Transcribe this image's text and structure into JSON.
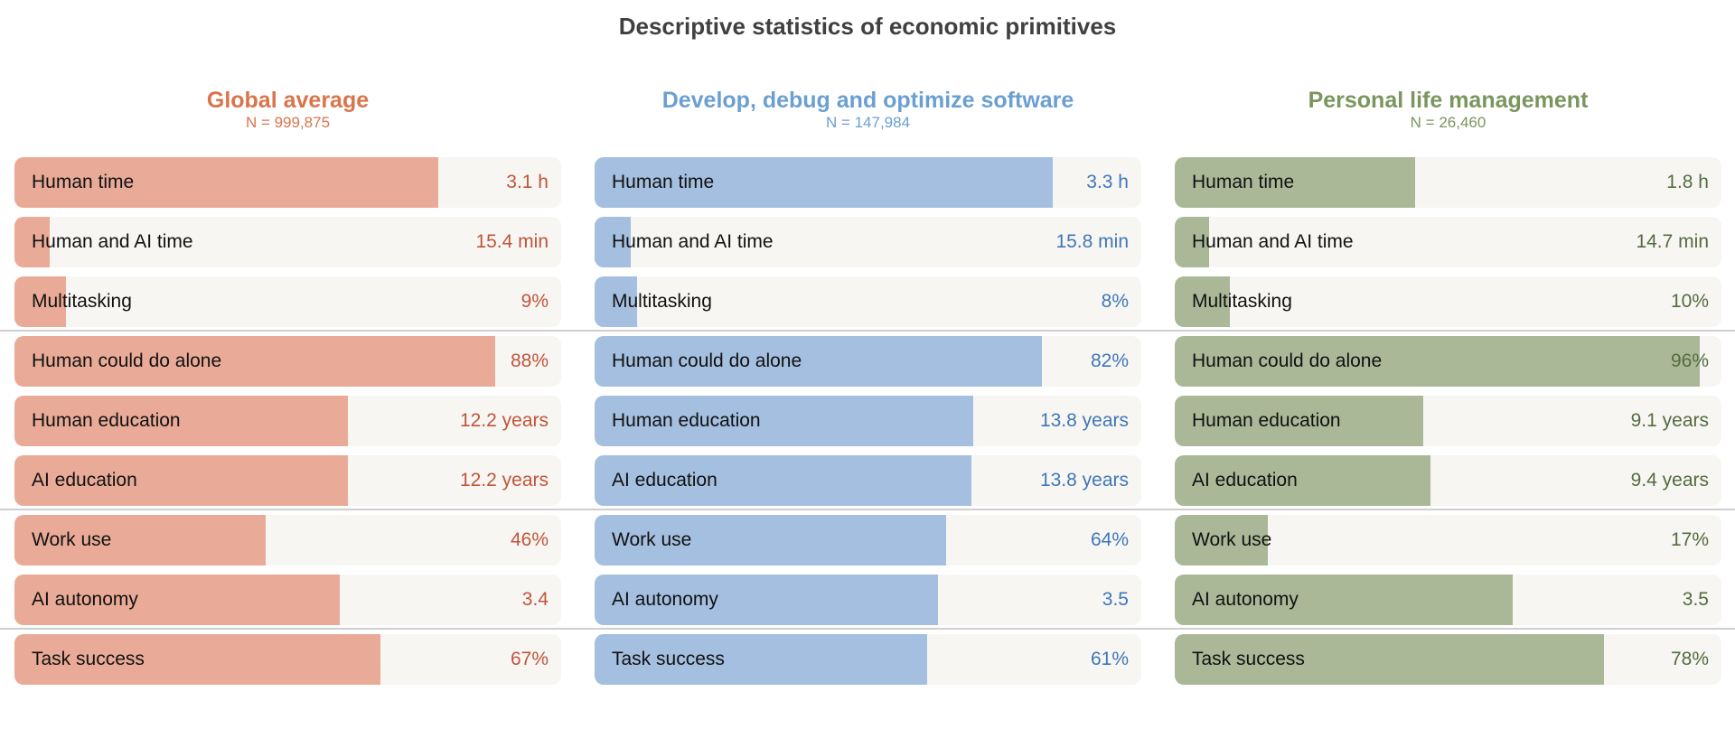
{
  "chart_data": {
    "type": "bar",
    "title": "Descriptive statistics of economic primitives",
    "panels": [
      {
        "name": "Global average",
        "n": "N = 999,875",
        "title_color": "#d9744c",
        "bar_color": "#e9ab97",
        "value_color": "#c0553a",
        "rows": [
          {
            "label": "Human time",
            "value": 3.1,
            "value_label": "3.1 h",
            "fill": 0.775
          },
          {
            "label": "Human and AI time",
            "value": 15.4,
            "value_label": "15.4 min",
            "fill": 0.065
          },
          {
            "label": "Multitasking",
            "value": 9,
            "value_label": "9%",
            "fill": 0.095
          },
          {
            "label": "Human could do alone",
            "value": 88,
            "value_label": "88%",
            "fill": 0.88
          },
          {
            "label": "Human education",
            "value": 12.2,
            "value_label": "12.2 years",
            "fill": 0.61
          },
          {
            "label": "AI education",
            "value": 12.2,
            "value_label": "12.2 years",
            "fill": 0.61
          },
          {
            "label": "Work use",
            "value": 46,
            "value_label": "46%",
            "fill": 0.46
          },
          {
            "label": "AI autonomy",
            "value": 3.4,
            "value_label": "3.4",
            "fill": 0.595
          },
          {
            "label": "Task success",
            "value": 67,
            "value_label": "67%",
            "fill": 0.67
          }
        ]
      },
      {
        "name": "Develop, debug and optimize software",
        "n": "N = 147,984",
        "title_color": "#6b9fd1",
        "bar_color": "#a4bfdf",
        "value_color": "#3f77b8",
        "rows": [
          {
            "label": "Human time",
            "value": 3.3,
            "value_label": "3.3 h",
            "fill": 0.838
          },
          {
            "label": "Human and AI time",
            "value": 15.8,
            "value_label": "15.8 min",
            "fill": 0.066
          },
          {
            "label": "Multitasking",
            "value": 8,
            "value_label": "8%",
            "fill": 0.078
          },
          {
            "label": "Human could do alone",
            "value": 82,
            "value_label": "82%",
            "fill": 0.818
          },
          {
            "label": "Human education",
            "value": 13.8,
            "value_label": "13.8 years",
            "fill": 0.692
          },
          {
            "label": "AI education",
            "value": 13.8,
            "value_label": "13.8 years",
            "fill": 0.69
          },
          {
            "label": "Work use",
            "value": 64,
            "value_label": "64%",
            "fill": 0.643
          },
          {
            "label": "AI autonomy",
            "value": 3.5,
            "value_label": "3.5",
            "fill": 0.628
          },
          {
            "label": "Task success",
            "value": 61,
            "value_label": "61%",
            "fill": 0.608
          }
        ]
      },
      {
        "name": "Personal life management",
        "n": "N = 26,460",
        "title_color": "#7a955e",
        "bar_color": "#aab898",
        "value_color": "#556b3f",
        "rows": [
          {
            "label": "Human time",
            "value": 1.8,
            "value_label": "1.8 h",
            "fill": 0.44
          },
          {
            "label": "Human and AI time",
            "value": 14.7,
            "value_label": "14.7 min",
            "fill": 0.062
          },
          {
            "label": "Multitasking",
            "value": 10,
            "value_label": "10%",
            "fill": 0.1
          },
          {
            "label": "Human could do alone",
            "value": 96,
            "value_label": "96%",
            "fill": 0.96
          },
          {
            "label": "Human education",
            "value": 9.1,
            "value_label": "9.1 years",
            "fill": 0.454
          },
          {
            "label": "AI education",
            "value": 9.4,
            "value_label": "9.4 years",
            "fill": 0.467
          },
          {
            "label": "Work use",
            "value": 17,
            "value_label": "17%",
            "fill": 0.17
          },
          {
            "label": "AI autonomy",
            "value": 3.5,
            "value_label": "3.5",
            "fill": 0.618
          },
          {
            "label": "Task success",
            "value": 78,
            "value_label": "78%",
            "fill": 0.785
          }
        ]
      }
    ]
  }
}
